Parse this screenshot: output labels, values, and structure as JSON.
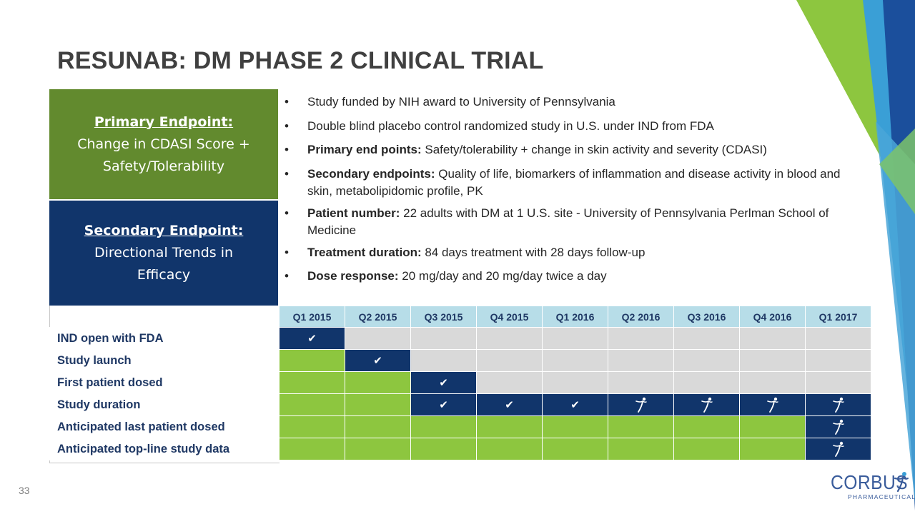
{
  "title": "RESUNAB: DM PHASE 2 CLINICAL TRIAL",
  "primary_endpoint": {
    "heading": "Primary Endpoint:",
    "line1": "Change in CDASI Score +",
    "line2": "Safety/Tolerability"
  },
  "secondary_endpoint": {
    "heading": "Secondary Endpoint:",
    "line1": "Directional Trends in",
    "line2": "Efficacy"
  },
  "bullets": [
    {
      "bold": "",
      "text": "Study funded by NIH award to University of Pennsylvania"
    },
    {
      "bold": "",
      "text": "Double blind placebo control randomized study in U.S. under IND from FDA"
    },
    {
      "bold": "Primary end points:",
      "text": " Safety/tolerability + change in skin activity and severity (CDASI)"
    },
    {
      "bold": "Secondary endpoints:",
      "text": " Quality of life, biomarkers of inflammation and disease activity in blood and skin, metabolipidomic profile, PK"
    },
    {
      "bold": "Patient number:",
      "text": " 22 adults with DM at 1 U.S. site - University of Pennsylvania Perlman School of Medicine"
    },
    {
      "bold": "Treatment duration:",
      "text": " 84 days treatment with 28 days follow-up"
    },
    {
      "bold": "Dose response:",
      "text": " 20 mg/day and 20 mg/day twice a day"
    }
  ],
  "timeline": {
    "quarters": [
      "Q1 2015",
      "Q2 2015",
      "Q3 2015",
      "Q4 2015",
      "Q1 2016",
      "Q2 2016",
      "Q3 2016",
      "Q4 2016",
      "Q1 2017"
    ],
    "legend_states": {
      "g": "completed",
      "b": "active",
      "e": "not started"
    },
    "rows": [
      {
        "label": "IND open with FDA",
        "cells": [
          "b:check",
          "e",
          "e",
          "e",
          "e",
          "e",
          "e",
          "e",
          "e"
        ]
      },
      {
        "label": "Study launch",
        "cells": [
          "g",
          "b:check",
          "e",
          "e",
          "e",
          "e",
          "e",
          "e",
          "e"
        ]
      },
      {
        "label": "First patient dosed",
        "cells": [
          "g",
          "g",
          "b:check",
          "e",
          "e",
          "e",
          "e",
          "e",
          "e"
        ]
      },
      {
        "label": "Study duration",
        "cells": [
          "g",
          "g",
          "b:check",
          "b:check",
          "b:check",
          "b:runner",
          "b:runner",
          "b:runner",
          "b:runner"
        ]
      },
      {
        "label": "Anticipated last patient dosed",
        "cells": [
          "g",
          "g",
          "g",
          "g",
          "g",
          "g",
          "g",
          "g",
          "b:runner"
        ]
      },
      {
        "label": "Anticipated top-line study data",
        "cells": [
          "g",
          "g",
          "g",
          "g",
          "g",
          "g",
          "g",
          "g",
          "b:runner"
        ]
      }
    ],
    "colors": {
      "header": "#b7dde8",
      "completed": "#8dc63f",
      "active": "#11356b",
      "empty": "#d9d9d9"
    }
  },
  "page_number": "33",
  "logo": {
    "name": "CORBUS",
    "tagline": "PHARMACEUTICALS"
  },
  "theme_colors": {
    "primary_box": "#628a2e",
    "secondary_box": "#11356b",
    "title": "#404040"
  }
}
